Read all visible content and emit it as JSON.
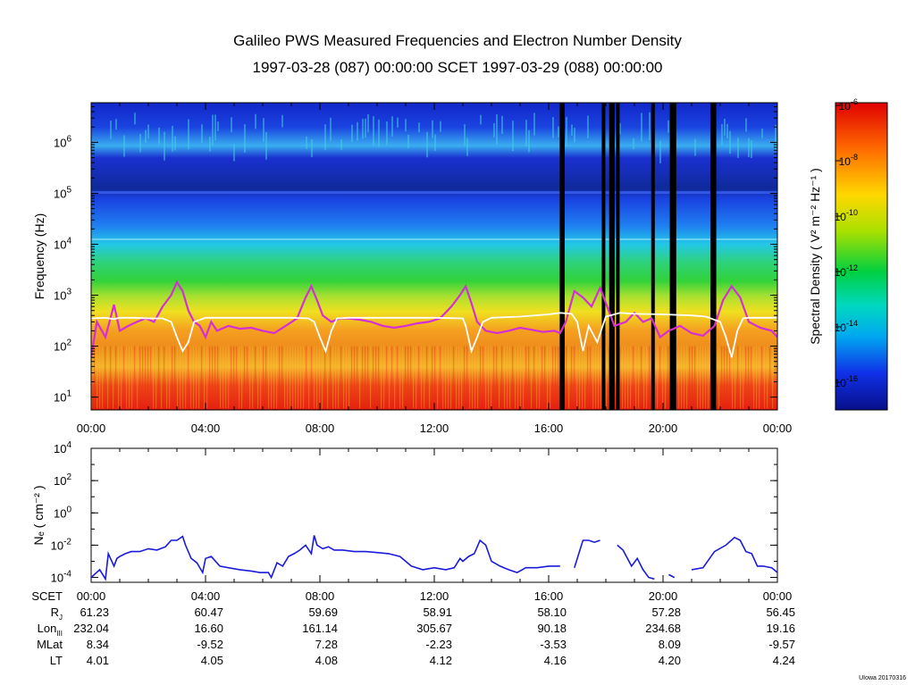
{
  "chart_data": [
    {
      "type": "heatmap",
      "title": "Galileo PWS Measured Frequencies and Electron Number Density",
      "subtitle": "1997-03-28 (087) 00:00:00 SCET 1997-03-29 (088) 00:00:00",
      "ylabel": "Frequency (Hz)",
      "yscale": "log",
      "ylim": [
        5.6,
        6000000
      ],
      "ytick_exponents": [
        1,
        2,
        3,
        4,
        5,
        6
      ],
      "xlim": [
        0,
        24
      ],
      "xticks": [
        0,
        4,
        8,
        12,
        16,
        20,
        24
      ],
      "xtick_labels": [
        "00:00",
        "04:00",
        "08:00",
        "12:00",
        "16:00",
        "20:00",
        "00:00"
      ],
      "colorbar": {
        "label": "Spectral Density ( V² m⁻² Hz⁻¹ )",
        "tick_exponents": [
          -6,
          -8,
          -10,
          -12,
          -14,
          -16
        ]
      },
      "data_gaps_hours": [
        16.45,
        16.5,
        17.92,
        18.18,
        18.25,
        18.42,
        19.65,
        20.3,
        20.4,
        21.72,
        21.8
      ],
      "series": [
        {
          "name": "upper cutoff frequency (magenta)",
          "color": "#d42fd4",
          "x": [
            0,
            0.2,
            0.5,
            0.8,
            1.0,
            1.3,
            1.6,
            1.9,
            2.2,
            2.5,
            2.8,
            3.0,
            3.2,
            3.4,
            3.6,
            3.8,
            4.0,
            4.2,
            4.4,
            4.8,
            5.2,
            5.6,
            6.0,
            6.4,
            6.8,
            7.2,
            7.5,
            7.7,
            7.9,
            8.1,
            8.4,
            8.7,
            9.0,
            9.4,
            9.8,
            10.2,
            10.6,
            11.0,
            11.4,
            11.8,
            12.2,
            12.6,
            12.9,
            13.1,
            13.3,
            13.5,
            13.8,
            14.2,
            14.6,
            15.0,
            15.4,
            15.8,
            16.2,
            16.4,
            16.6,
            16.9,
            17.2,
            17.5,
            17.8,
            18.3,
            18.7,
            19.0,
            19.3,
            19.6,
            19.9,
            20.2,
            20.6,
            21.0,
            21.4,
            21.8,
            22.1,
            22.4,
            22.7,
            23.0,
            23.4,
            23.8,
            24.0
          ],
          "values": [
            60,
            300,
            150,
            650,
            200,
            250,
            300,
            350,
            300,
            600,
            1000,
            1800,
            1200,
            500,
            300,
            250,
            150,
            300,
            200,
            250,
            220,
            230,
            200,
            180,
            250,
            350,
            900,
            1500,
            800,
            400,
            300,
            350,
            350,
            330,
            300,
            250,
            230,
            250,
            280,
            300,
            350,
            600,
            1000,
            1500,
            700,
            300,
            200,
            180,
            200,
            230,
            210,
            190,
            200,
            180,
            300,
            1200,
            900,
            600,
            1400,
            250,
            300,
            450,
            300,
            350,
            150,
            200,
            250,
            180,
            160,
            250,
            800,
            1500,
            900,
            300,
            230,
            200,
            150
          ]
        },
        {
          "name": "electron plasma frequency (white)",
          "color": "#ffffff",
          "x": [
            0,
            0.5,
            0.8,
            1.0,
            1.5,
            2.0,
            2.5,
            2.8,
            3.0,
            3.2,
            3.4,
            3.6,
            4.0,
            5.0,
            6.0,
            7.0,
            7.6,
            7.8,
            8.0,
            8.2,
            8.4,
            8.6,
            9.0,
            10.0,
            11.0,
            12.0,
            13.0,
            13.1,
            13.3,
            13.5,
            13.7,
            14.0,
            15.0,
            16.0,
            16.4,
            16.8,
            17.0,
            17.2,
            17.4,
            17.7,
            18.0,
            18.3,
            18.5,
            19.0,
            20.0,
            21.0,
            21.5,
            22.0,
            22.2,
            22.4,
            22.6,
            22.8,
            23.0,
            23.5,
            24.0
          ],
          "values": [
            350,
            360,
            340,
            360,
            360,
            350,
            350,
            300,
            150,
            80,
            120,
            300,
            360,
            360,
            360,
            360,
            350,
            300,
            150,
            80,
            200,
            350,
            360,
            360,
            360,
            360,
            350,
            250,
            80,
            150,
            300,
            360,
            380,
            420,
            450,
            430,
            300,
            80,
            250,
            120,
            380,
            420,
            450,
            430,
            420,
            400,
            380,
            300,
            150,
            60,
            200,
            350,
            360,
            360,
            360
          ]
        }
      ]
    },
    {
      "type": "line",
      "ylabel": "Nₑ ( cm⁻² )",
      "yscale": "log",
      "ylim": [
        5e-05,
        10000
      ],
      "ytick_exponents": [
        4,
        2,
        0,
        -2,
        -4
      ],
      "xlim": [
        0,
        24
      ],
      "series": [
        {
          "name": "electron number density",
          "color": "#1a1adc",
          "x": [
            0,
            0.3,
            0.5,
            0.6,
            0.8,
            0.9,
            1.0,
            1.2,
            1.4,
            1.7,
            2.0,
            2.3,
            2.6,
            2.8,
            3.0,
            3.2,
            3.3,
            3.5,
            3.7,
            3.9,
            4.0,
            4.2,
            4.5,
            4.8,
            5.2,
            5.6,
            5.9,
            6.2,
            6.3,
            6.5,
            6.7,
            6.9,
            7.1,
            7.3,
            7.5,
            7.7,
            7.8,
            7.9,
            8.1,
            8.3,
            8.5,
            8.8,
            9.2,
            9.6,
            10.0,
            10.4,
            10.8,
            11.2,
            11.6,
            12.0,
            12.4,
            12.7,
            12.9,
            13.0,
            13.2,
            13.4,
            13.6,
            13.8,
            14.0,
            14.3,
            14.6,
            14.9,
            15.2,
            15.6,
            16.0,
            16.4,
            16.6,
            16.9,
            17.2,
            17.4,
            17.6,
            17.8,
            18.2,
            18.4,
            18.6,
            18.9,
            19.1,
            19.3,
            19.5,
            19.7,
            20.0,
            20.2,
            20.4,
            20.6,
            21.0,
            21.4,
            21.8,
            22.2,
            22.5,
            22.7,
            22.9,
            23.1,
            23.3,
            23.5,
            23.8,
            24.0
          ],
          "values": [
            0.0001,
            0.0003,
            8e-05,
            0.003,
            0.0005,
            0.0015,
            0.002,
            0.003,
            0.004,
            0.004,
            0.006,
            0.005,
            0.008,
            0.02,
            0.02,
            0.035,
            0.01,
            0.0015,
            0.0008,
            0.0002,
            0.0015,
            0.002,
            0.0005,
            0.0004,
            0.0003,
            0.00025,
            0.0002,
            0.0002,
            0.0001,
            0.0008,
            0.0005,
            0.002,
            0.003,
            0.005,
            0.01,
            0.003,
            0.04,
            0.01,
            0.006,
            0.008,
            0.005,
            0.005,
            0.004,
            0.004,
            0.0035,
            0.003,
            0.002,
            0.0005,
            0.0003,
            0.0004,
            0.0003,
            0.0004,
            0.0015,
            0.001,
            0.002,
            0.003,
            0.02,
            0.01,
            0.001,
            0.0005,
            0.0003,
            0.0002,
            0.0004,
            0.0004,
            0.0005,
            0.0005,
            null,
            0.0004,
            0.02,
            0.02,
            0.015,
            0.02,
            null,
            0.01,
            0.005,
            0.0005,
            0.0015,
            0.0003,
            0.0001,
            8e-05,
            null,
            0.00015,
            0.0001,
            null,
            0.0003,
            0.0004,
            0.004,
            0.01,
            0.03,
            0.02,
            0.004,
            0.003,
            0.0005,
            0.0005,
            0.0004,
            0.0002
          ]
        }
      ]
    }
  ],
  "ephemeris": {
    "rows": [
      {
        "label": "SCET",
        "values": [
          "00:00",
          "04:00",
          "08:00",
          "12:00",
          "16:00",
          "20:00",
          "00:00"
        ]
      },
      {
        "label": "R",
        "sub": "J",
        "values": [
          "61.23",
          "60.47",
          "59.69",
          "58.91",
          "58.10",
          "57.28",
          "56.45"
        ]
      },
      {
        "label": "Lon",
        "sub": "III",
        "values": [
          "232.04",
          "16.60",
          "161.14",
          "305.67",
          "90.18",
          "234.68",
          "19.16"
        ]
      },
      {
        "label": "MLat",
        "sub": "",
        "values": [
          "8.34",
          "-9.52",
          "7.28",
          "-2.23",
          "-3.53",
          "8.09",
          "-9.57"
        ]
      },
      {
        "label": "LT",
        "sub": "",
        "values": [
          "4.01",
          "4.05",
          "4.08",
          "4.12",
          "4.16",
          "4.20",
          "4.24"
        ]
      }
    ]
  },
  "credit": "UIowa 20170316"
}
